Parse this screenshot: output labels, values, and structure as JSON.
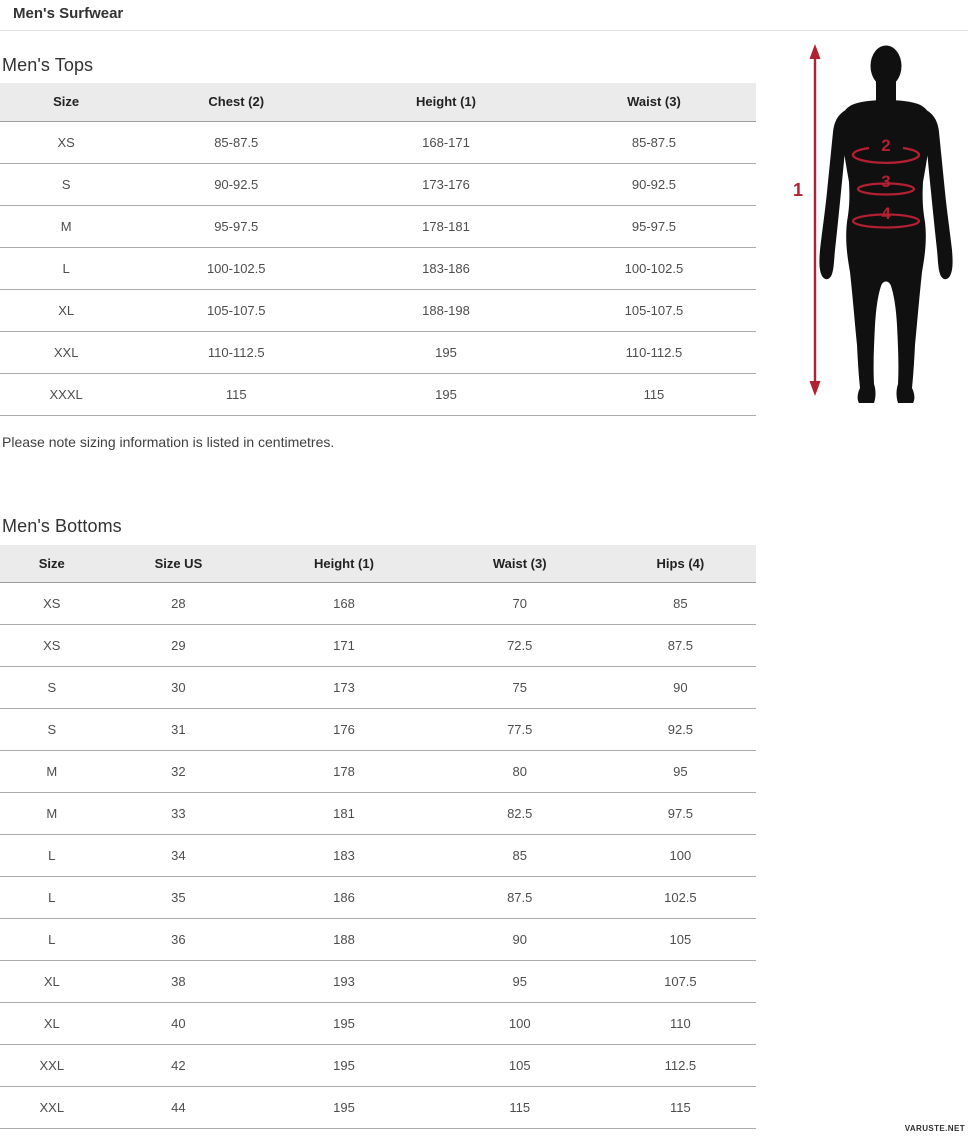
{
  "page": {
    "title": "Men's Surfwear",
    "note": "Please note sizing information is listed in centimetres.",
    "watermark": "VARUSTE.NET"
  },
  "tops": {
    "heading": "Men's Tops",
    "columns": [
      "Size",
      "Chest (2)",
      "Height (1)",
      "Waist (3)"
    ],
    "rows": [
      [
        "XS",
        "85-87.5",
        "168-171",
        "85-87.5"
      ],
      [
        "S",
        "90-92.5",
        "173-176",
        "90-92.5"
      ],
      [
        "M",
        "95-97.5",
        "178-181",
        "95-97.5"
      ],
      [
        "L",
        "100-102.5",
        "183-186",
        "100-102.5"
      ],
      [
        "XL",
        "105-107.5",
        "188-198",
        "105-107.5"
      ],
      [
        "XXL",
        "110-112.5",
        "195",
        "110-112.5"
      ],
      [
        "XXXL",
        "115",
        "195",
        "115"
      ]
    ]
  },
  "bottoms": {
    "heading": "Men's Bottoms",
    "columns": [
      "Size",
      "Size US",
      "Height (1)",
      "Waist (3)",
      "Hips (4)"
    ],
    "rows": [
      [
        "XS",
        "28",
        "168",
        "70",
        "85"
      ],
      [
        "XS",
        "29",
        "171",
        "72.5",
        "87.5"
      ],
      [
        "S",
        "30",
        "173",
        "75",
        "90"
      ],
      [
        "S",
        "31",
        "176",
        "77.5",
        "92.5"
      ],
      [
        "M",
        "32",
        "178",
        "80",
        "95"
      ],
      [
        "M",
        "33",
        "181",
        "82.5",
        "97.5"
      ],
      [
        "L",
        "34",
        "183",
        "85",
        "100"
      ],
      [
        "L",
        "35",
        "186",
        "87.5",
        "102.5"
      ],
      [
        "L",
        "36",
        "188",
        "90",
        "105"
      ],
      [
        "XL",
        "38",
        "193",
        "95",
        "107.5"
      ],
      [
        "XL",
        "40",
        "195",
        "100",
        "110"
      ],
      [
        "XXL",
        "42",
        "195",
        "105",
        "112.5"
      ],
      [
        "XXL",
        "44",
        "195",
        "115",
        "115"
      ]
    ]
  },
  "figure": {
    "height_label": "1",
    "chest_label": "2",
    "waist_label": "3",
    "hips_label": "4",
    "accent_color": "#b22032",
    "silhouette_color": "#101010"
  }
}
